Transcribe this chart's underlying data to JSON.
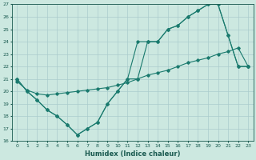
{
  "xlabel": "Humidex (Indice chaleur)",
  "bg_color": "#cce8e0",
  "grid_color": "#aacccc",
  "line_color": "#1a7a6e",
  "xlim": [
    -0.5,
    23.5
  ],
  "ylim": [
    16,
    27
  ],
  "xticks": [
    0,
    1,
    2,
    3,
    4,
    5,
    6,
    7,
    8,
    9,
    10,
    11,
    12,
    13,
    14,
    15,
    16,
    17,
    18,
    19,
    20,
    21,
    22,
    23
  ],
  "yticks": [
    16,
    17,
    18,
    19,
    20,
    21,
    22,
    23,
    24,
    25,
    26,
    27
  ],
  "line1_x": [
    0,
    1,
    2,
    3,
    4,
    5,
    6,
    7,
    8,
    9,
    10,
    11,
    12,
    13,
    14,
    15,
    16,
    17,
    18,
    19,
    20,
    21,
    22,
    23
  ],
  "line1_y": [
    21.0,
    20.0,
    19.3,
    18.5,
    18.0,
    17.3,
    16.5,
    17.0,
    17.5,
    19.0,
    20.0,
    21.0,
    21.0,
    24.0,
    24.0,
    25.0,
    25.3,
    26.0,
    26.5,
    27.0,
    27.0,
    24.5,
    22.0,
    22.0
  ],
  "line2_x": [
    0,
    1,
    2,
    3,
    4,
    5,
    6,
    7,
    8,
    9,
    10,
    11,
    12,
    13,
    14,
    15,
    16,
    17,
    18,
    19,
    20,
    21,
    22,
    23
  ],
  "line2_y": [
    21.0,
    20.0,
    19.3,
    18.5,
    18.0,
    17.3,
    16.5,
    17.0,
    17.5,
    19.0,
    20.0,
    21.0,
    24.0,
    24.0,
    24.0,
    25.0,
    25.3,
    26.0,
    26.5,
    27.0,
    27.0,
    24.5,
    22.0,
    22.0
  ],
  "line3_x": [
    0,
    1,
    2,
    3,
    4,
    5,
    6,
    7,
    8,
    9,
    10,
    11,
    12,
    13,
    14,
    15,
    16,
    17,
    18,
    19,
    20,
    21,
    22,
    23
  ],
  "line3_y": [
    20.8,
    20.1,
    19.8,
    19.7,
    19.8,
    19.9,
    20.0,
    20.1,
    20.2,
    20.3,
    20.5,
    20.7,
    21.0,
    21.3,
    21.5,
    21.7,
    22.0,
    22.3,
    22.5,
    22.7,
    23.0,
    23.2,
    23.5,
    22.0
  ]
}
